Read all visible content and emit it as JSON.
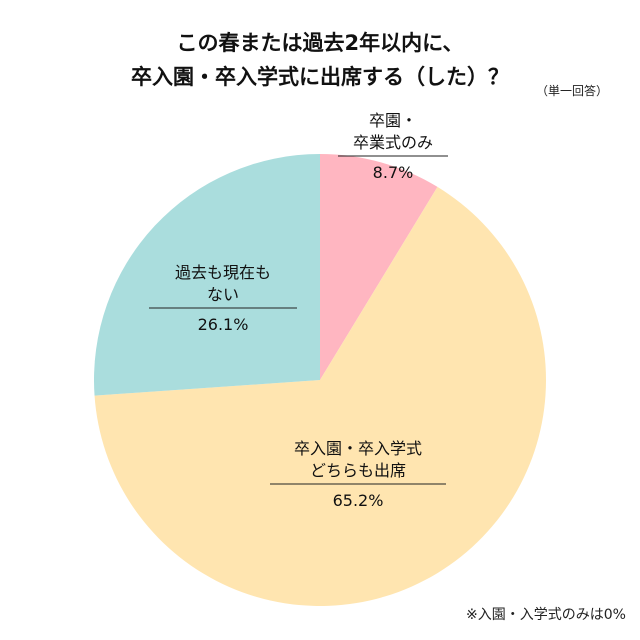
{
  "title": {
    "line1": "この春または過去2年以内に、",
    "line2": "卒入園・卒入学式に出席する（した）？"
  },
  "note_top": "（単一回答）",
  "note_bottom": "※入園・入学式のみは0%",
  "chart_data": {
    "type": "pie",
    "title": "この春または過去2年以内に、卒入園・卒入学式に出席する（した）？",
    "slices": [
      {
        "label_lines": [
          "卒園・",
          "卒業式のみ"
        ],
        "value": 8.7,
        "value_label": "8.7%",
        "color": "#ffb6c1"
      },
      {
        "label_lines": [
          "卒入園・卒入学式",
          "どちらも出席"
        ],
        "value": 65.2,
        "value_label": "65.2%",
        "color": "#ffe5b0"
      },
      {
        "label_lines": [
          "過去も現在も",
          "ない"
        ],
        "value": 26.1,
        "value_label": "26.1%",
        "color": "#aadddd"
      }
    ]
  }
}
